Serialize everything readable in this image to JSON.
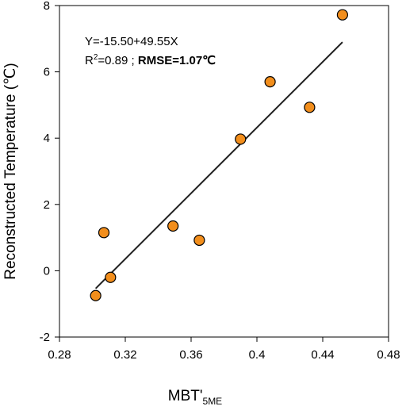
{
  "chart_data": {
    "type": "scatter",
    "xlabel": "MBT'",
    "xlabel_sub": "5ME",
    "ylabel": "Reconstructed Temperature (℃)",
    "xlim": [
      0.28,
      0.48
    ],
    "ylim": [
      -2,
      8
    ],
    "xticks": [
      "0.28",
      "0.32",
      "0.36",
      "0.4",
      "0.44",
      "0.48"
    ],
    "yticks": [
      "-2",
      "0",
      "2",
      "4",
      "6",
      "8"
    ],
    "points": [
      {
        "x": 0.302,
        "y": -0.75
      },
      {
        "x": 0.307,
        "y": 1.15
      },
      {
        "x": 0.311,
        "y": -0.2
      },
      {
        "x": 0.349,
        "y": 1.35
      },
      {
        "x": 0.365,
        "y": 0.92
      },
      {
        "x": 0.39,
        "y": 3.97
      },
      {
        "x": 0.408,
        "y": 5.7
      },
      {
        "x": 0.432,
        "y": 4.93
      },
      {
        "x": 0.452,
        "y": 7.72
      }
    ],
    "fit_line": {
      "slope": 49.55,
      "intercept": -15.5,
      "x_range": [
        0.302,
        0.452
      ]
    },
    "annotation_equation": "Y=-15.50+49.55X",
    "annotation_r_prefix": "R",
    "annotation_r_sup": "2",
    "annotation_r_value": "=0.89 ; ",
    "annotation_rmse": "RMSE=1.07℃",
    "marker_color": "#f28e1c",
    "marker_edge": "#000000",
    "line_color": "#222222",
    "grid": false,
    "legend": "none"
  }
}
